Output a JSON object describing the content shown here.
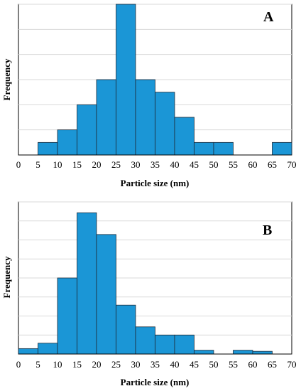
{
  "chart_data": [
    {
      "type": "bar",
      "panel_label": "A",
      "bin_edges": [
        0,
        5,
        10,
        15,
        20,
        25,
        30,
        35,
        40,
        45,
        50,
        55,
        60,
        65,
        70
      ],
      "values": [
        0,
        1,
        2,
        4,
        6,
        12,
        6,
        5,
        3,
        1,
        1,
        0,
        0,
        1
      ],
      "x_tick_labels": [
        "0",
        "5",
        "10",
        "15",
        "20",
        "25",
        "30",
        "35",
        "40",
        "45",
        "50",
        "55",
        "60",
        "65",
        "70"
      ],
      "xlabel": "Particle size (nm)",
      "ylabel": "Frequency",
      "xlim": [
        0,
        70
      ],
      "ylim": [
        0,
        12
      ],
      "y_grid_step": 2,
      "grid": "horizontal",
      "colors": {
        "bar": "#1b96d6",
        "bar_edge": "#1d2a38",
        "grid": "#d9d9d9"
      }
    },
    {
      "type": "bar",
      "panel_label": "B",
      "bin_edges": [
        0,
        5,
        10,
        15,
        20,
        25,
        30,
        35,
        40,
        45,
        50,
        55,
        60,
        65,
        70
      ],
      "values": [
        1,
        2,
        14,
        26,
        22,
        9,
        5,
        3.5,
        3.5,
        0.7,
        0,
        0.7,
        0.5,
        0
      ],
      "x_tick_labels": [
        "0",
        "5",
        "10",
        "15",
        "20",
        "25",
        "30",
        "35",
        "40",
        "45",
        "50",
        "55",
        "60",
        "65",
        "70"
      ],
      "xlabel": "Particle size (nm)",
      "ylabel": "Frequency",
      "xlim": [
        0,
        70
      ],
      "ylim": [
        0,
        28
      ],
      "y_grid_step": 3.5,
      "grid": "horizontal",
      "colors": {
        "bar": "#1b96d6",
        "bar_edge": "#1d2a38",
        "grid": "#d9d9d9"
      }
    }
  ]
}
